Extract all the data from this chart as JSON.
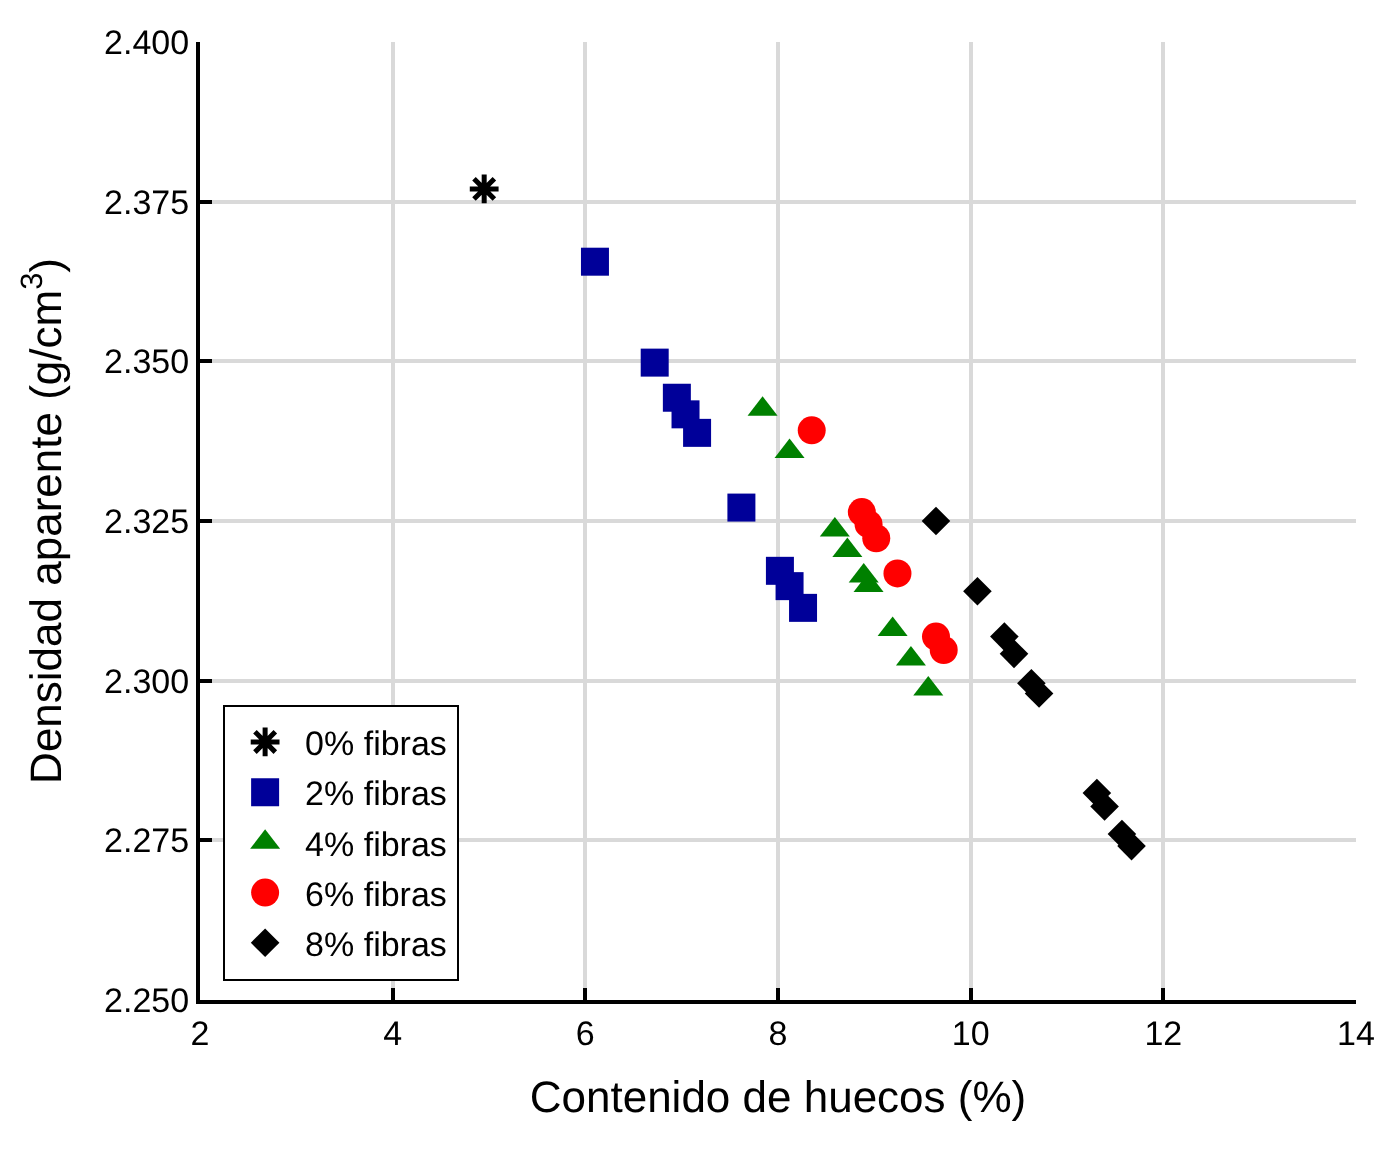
{
  "chart_data": {
    "type": "scatter",
    "xlabel": "Contenido de huecos (%)",
    "ylabel": "Densidad aparente (g/cm$^{3}$)",
    "xlim": [
      2,
      14
    ],
    "xticks": [
      2,
      4,
      6,
      8,
      10,
      12,
      14
    ],
    "ylim": [
      2.25,
      2.4
    ],
    "yticks": [
      {
        "value": 2.25,
        "label": "2.250"
      },
      {
        "value": 2.275,
        "label": "2.275"
      },
      {
        "value": 2.3,
        "label": "2.300"
      },
      {
        "value": 2.325,
        "label": "2.325"
      },
      {
        "value": 2.35,
        "label": "2.350"
      },
      {
        "value": 2.375,
        "label": "2.375"
      },
      {
        "value": 2.4,
        "label": "2.400"
      }
    ],
    "grid": true,
    "legend": "bottom left",
    "series": [
      {
        "name": "0% fibras",
        "color": "#000000",
        "marker": "cross",
        "x": [
          4.95
        ],
        "values": [
          2.377
        ]
      },
      {
        "name": "2% fibras",
        "color": "#000099",
        "marker": "square",
        "x": [
          6.1,
          6.72,
          6.95,
          7.04,
          7.16,
          7.62,
          8.02,
          8.12,
          8.26
        ],
        "values": [
          2.3656,
          2.3498,
          2.3443,
          2.3417,
          2.3388,
          2.3271,
          2.3172,
          2.3148,
          2.3114
        ]
      },
      {
        "name": "4% fibras",
        "color": "#008000",
        "marker": "triangle",
        "x": [
          7.84,
          8.12,
          8.59,
          8.72,
          8.89,
          8.94,
          9.19,
          9.38,
          9.56
        ],
        "values": [
          2.3425,
          2.3359,
          2.3236,
          2.3204,
          2.3164,
          2.3149,
          2.308,
          2.3034,
          2.2987
        ]
      },
      {
        "name": "6% fibras",
        "color": "#ff0000",
        "marker": "circle",
        "x": [
          8.35,
          8.87,
          8.94,
          9.02,
          9.24,
          9.64,
          9.72
        ],
        "values": [
          2.3392,
          2.3264,
          2.3245,
          2.3223,
          2.3168,
          2.3069,
          2.3048
        ]
      },
      {
        "name": "8% fibras",
        "color": "#000000",
        "marker": "diamond",
        "x": [
          9.64,
          10.07,
          10.35,
          10.45,
          10.63,
          10.71,
          11.31,
          11.39,
          11.57,
          11.67
        ],
        "values": [
          2.325,
          2.314,
          2.3069,
          2.3042,
          2.2996,
          2.298,
          2.2824,
          2.2803,
          2.276,
          2.2741
        ]
      }
    ]
  }
}
